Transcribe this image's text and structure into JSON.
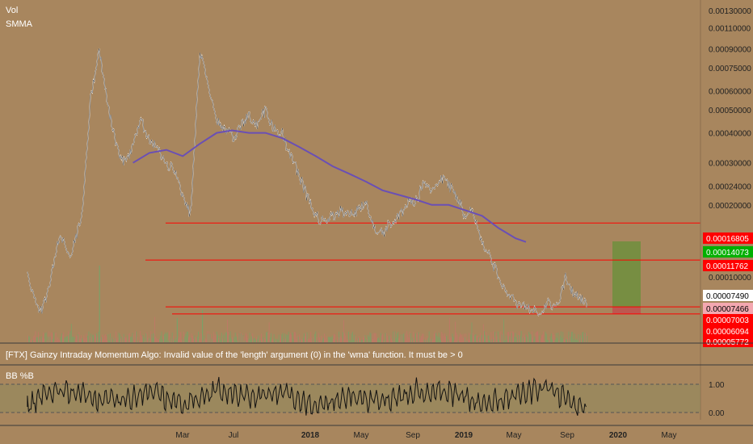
{
  "legend": {
    "vol": "Vol",
    "smma": "SMMA"
  },
  "error_message": "[FTX] Gainzy Intraday Momentum Algo: Invalid value of the 'length' argument (0) in the 'wma' function. It must be > 0",
  "indicator": {
    "label": "BB %B",
    "levels": [
      "1.00",
      "0.00"
    ]
  },
  "colors": {
    "background": "#a8865e",
    "candles": "#ffffff",
    "smma": "#6a4fb5",
    "hline": "#ff0000",
    "tag_red": "#ff0000",
    "tag_green": "#00b000",
    "tag_white": "#ffffff",
    "tag_pink": "#f4a7b0",
    "target_zone": "#6f8f3d",
    "stop_zone": "#c0504d",
    "bbb_band": "#8f8a5c"
  },
  "chart_data": [
    {
      "type": "line",
      "log_scale": true,
      "price_axis_ticks": [
        "0.00130000",
        "0.00110000",
        "0.00090000",
        "0.00075000",
        "0.00060000",
        "0.00050000",
        "0.00040000",
        "0.00030000",
        "0.00024000",
        "0.00020000",
        "0.00010000"
      ],
      "price_tags": [
        {
          "label": "0.00016805",
          "kind": "red"
        },
        {
          "label": "0.00014073",
          "kind": "green"
        },
        {
          "label": "0.00011762",
          "kind": "red"
        },
        {
          "label": "0.00007490",
          "kind": "white"
        },
        {
          "label": "0.00007466",
          "kind": "pink"
        },
        {
          "label": "0.00007003",
          "kind": "red"
        },
        {
          "label": "0.00006094",
          "kind": "red"
        },
        {
          "label": "0.00005772",
          "kind": "red"
        }
      ],
      "horizontal_lines": [
        0.00016805,
        0.00011762,
        7.49e-05,
        7.003e-05
      ],
      "position_tool": {
        "entry": 7.49e-05,
        "target": 0.00014073,
        "stop": 7.003e-05
      },
      "x_labels": [
        "Mar",
        "Jul",
        "2018",
        "May",
        "Sep",
        "2019",
        "May",
        "Sep",
        "2020",
        "May"
      ],
      "series": [
        {
          "name": "",
          "x": [
            "2017-02-20",
            "2017-03-01",
            "2017-03-15",
            "2017-04-01",
            "2017-04-20",
            "2017-05-10",
            "2017-06-01",
            "2017-06-15",
            "2017-07-01",
            "2017-07-15",
            "2017-08-01",
            "2017-08-15",
            "2017-09-01",
            "2017-09-15",
            "2017-10-01",
            "2017-10-15",
            "2017-11-01",
            "2017-11-15",
            "2017-12-01",
            "2017-12-15",
            "2018-01-01",
            "2018-01-15",
            "2018-02-01",
            "2018-02-15",
            "2018-03-01",
            "2018-03-15",
            "2018-04-01",
            "2018-04-15",
            "2018-05-01",
            "2018-05-15",
            "2018-06-01",
            "2018-06-15",
            "2018-07-01",
            "2018-07-15",
            "2018-08-01",
            "2018-08-15",
            "2018-09-01",
            "2018-09-15",
            "2018-10-01",
            "2018-10-15",
            "2018-11-01",
            "2018-11-15",
            "2018-12-01",
            "2018-12-15",
            "2019-01-01",
            "2019-01-15",
            "2019-02-01",
            "2019-02-15",
            "2019-03-01",
            "2019-03-15",
            "2019-04-01",
            "2019-04-15",
            "2019-05-01",
            "2019-05-15",
            "2019-06-01",
            "2019-06-15",
            "2019-07-01",
            "2019-07-15",
            "2019-08-01",
            "2019-08-15",
            "2019-09-01",
            "2019-09-15",
            "2019-10-01",
            "2019-10-15",
            "2019-11-01",
            "2019-11-15",
            "2019-12-01",
            "2019-12-10"
          ],
          "values": [
            0.000105,
            8.5e-05,
            7e-05,
            9e-05,
            0.00015,
            0.00012,
            0.00019,
            0.00055,
            0.0009,
            0.00055,
            0.00035,
            0.0003,
            0.00035,
            0.00045,
            0.00038,
            0.00034,
            0.0003,
            0.00028,
            0.00022,
            0.00018,
            0.0009,
            0.00065,
            0.00045,
            0.00042,
            0.00038,
            0.00042,
            0.00048,
            0.00043,
            0.0005,
            0.00042,
            0.0004,
            0.00032,
            0.00027,
            0.00022,
            0.00018,
            0.00017,
            0.00018,
            0.00019,
            0.00018,
            0.00019,
            0.00021,
            0.00016,
            0.00015,
            0.00017,
            0.00018,
            0.0002,
            0.00021,
            0.00025,
            0.00022,
            0.00026,
            0.00024,
            0.00022,
            0.00018,
            0.00019,
            0.00014,
            0.00012,
            0.0001,
            8.5e-05,
            7.8e-05,
            7.5e-05,
            7.3e-05,
            7e-05,
            7.8e-05,
            7.5e-05,
            0.0001,
            8.5e-05,
            8e-05,
            7.49e-05
          ]
        },
        {
          "name": "",
          "x": [
            "2017-09-01",
            "2017-10-01",
            "2017-11-01",
            "2017-12-01",
            "2018-01-01",
            "2018-02-01",
            "2018-03-01",
            "2018-04-01",
            "2018-05-01",
            "2018-06-01",
            "2018-07-01",
            "2018-08-01",
            "2018-09-01",
            "2018-10-01",
            "2018-11-01",
            "2018-12-01",
            "2019-01-01",
            "2019-02-01",
            "2019-03-01",
            "2019-04-01",
            "2019-05-01",
            "2019-06-01",
            "2019-07-01",
            "2019-08-01",
            "2019-08-20"
          ],
          "values": [
            0.0003,
            0.00033,
            0.00034,
            0.00032,
            0.00036,
            0.0004,
            0.00041,
            0.0004,
            0.0004,
            0.00038,
            0.00035,
            0.00032,
            0.00029,
            0.00027,
            0.00025,
            0.00023,
            0.00022,
            0.00021,
            0.0002,
            0.0002,
            0.00019,
            0.00018,
            0.00016,
            0.000145,
            0.00014
          ]
        }
      ]
    },
    {
      "type": "line",
      "ylim": [
        0,
        1
      ],
      "series": [
        {
          "name": "",
          "x": [
            "2017-02-20",
            "2017-04-01",
            "2017-06-01",
            "2017-08-01",
            "2017-10-01",
            "2017-12-01",
            "2018-02-01",
            "2018-04-01",
            "2018-06-01",
            "2018-08-01",
            "2018-10-01",
            "2018-12-01",
            "2019-02-01",
            "2019-04-01",
            "2019-06-01",
            "2019-08-01",
            "2019-10-01",
            "2019-12-10"
          ],
          "values": [
            0.2,
            0.8,
            0.6,
            0.4,
            0.7,
            0.3,
            0.8,
            0.5,
            0.7,
            0.2,
            0.6,
            0.4,
            0.8,
            0.7,
            0.3,
            0.6,
            0.9,
            0.0
          ]
        }
      ]
    }
  ]
}
